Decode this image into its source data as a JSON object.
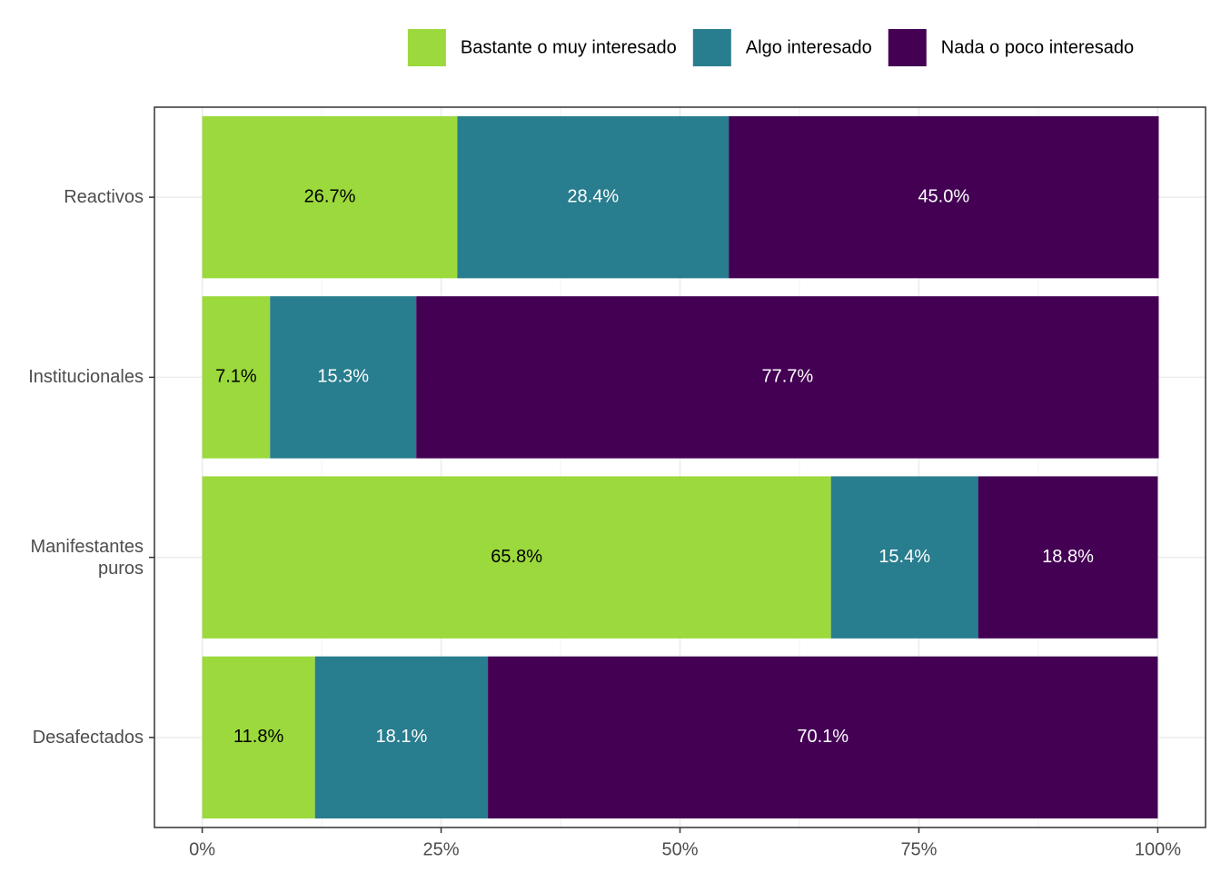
{
  "chart_data": {
    "type": "stacked-bar-horizontal",
    "categories": [
      "Reactivos",
      "Institucionales",
      "Manifestantes puros",
      "Desafectados"
    ],
    "series": [
      {
        "name": "Bastante o muy interesado",
        "color": "#9bd93c",
        "label_color": "#000000",
        "values": [
          26.7,
          7.1,
          65.8,
          11.8
        ],
        "value_labels": [
          "26.7%",
          "7.1%",
          "65.8%",
          "11.8%"
        ]
      },
      {
        "name": "Algo interesado",
        "color": "#287d8e",
        "label_color": "#ffffff",
        "values": [
          28.4,
          15.3,
          15.4,
          18.1
        ],
        "value_labels": [
          "28.4%",
          "15.3%",
          "15.4%",
          "18.1%"
        ]
      },
      {
        "name": "Nada o poco interesado",
        "color": "#440154",
        "label_color": "#ffffff",
        "values": [
          45.0,
          77.7,
          18.8,
          70.1
        ],
        "value_labels": [
          "45.0%",
          "77.7%",
          "18.8%",
          "70.1%"
        ]
      }
    ],
    "xlim": [
      -5,
      105
    ],
    "xticks": [
      {
        "value": 0,
        "label": "0%"
      },
      {
        "value": 25,
        "label": "25%"
      },
      {
        "value": 50,
        "label": "50%"
      },
      {
        "value": 75,
        "label": "75%"
      },
      {
        "value": 100,
        "label": "100%"
      }
    ],
    "grid": true,
    "legend": "top"
  }
}
